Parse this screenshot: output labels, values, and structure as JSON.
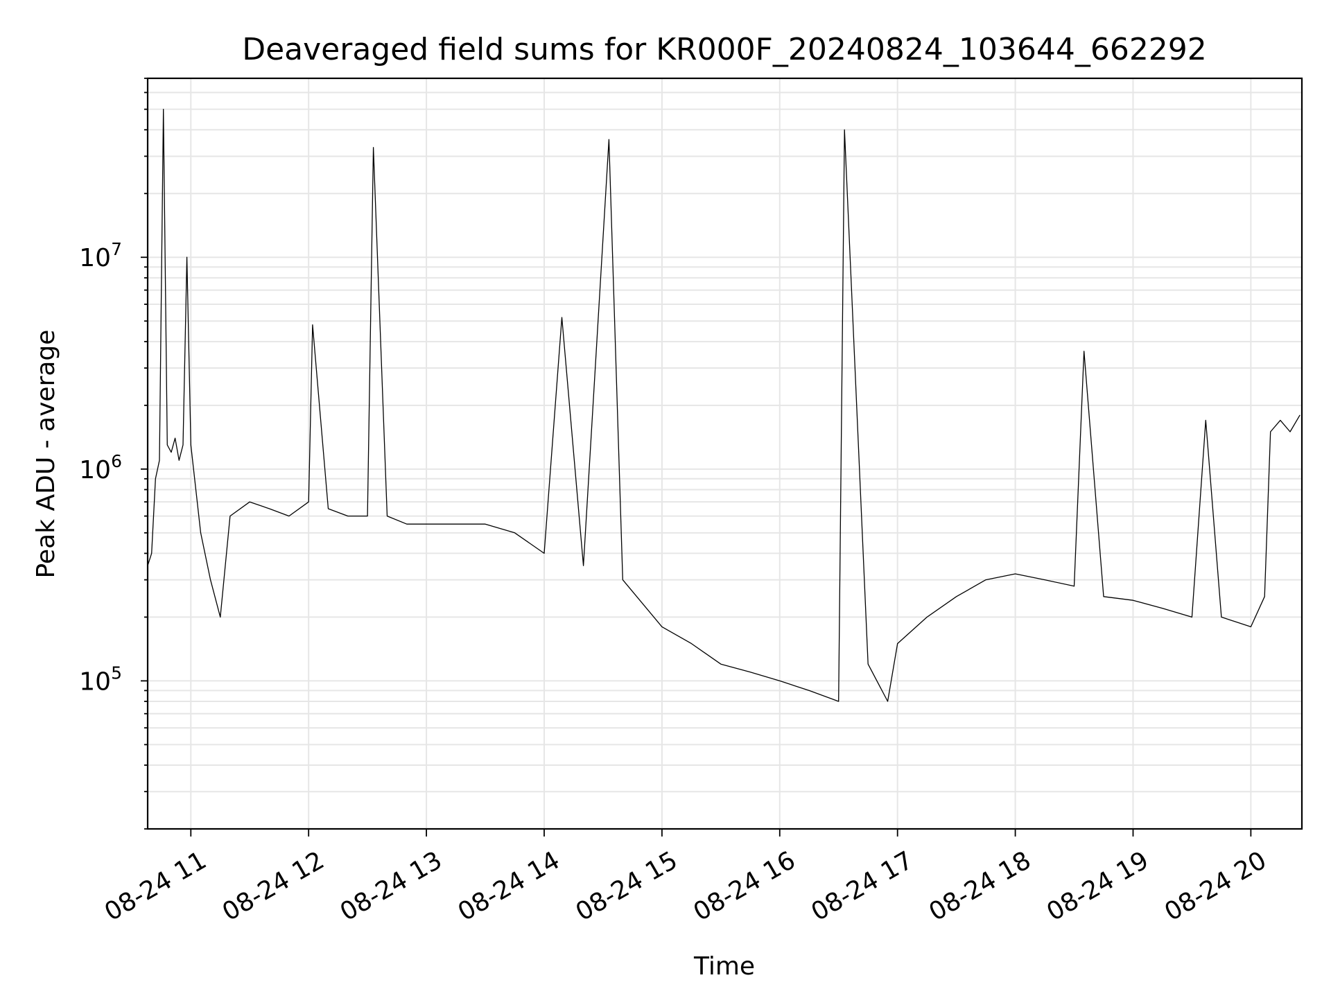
{
  "chart_data": {
    "type": "line",
    "title": "Deaveraged field sums for KR000F_20240824_103644_662292",
    "xlabel": "Time",
    "ylabel": "Peak ADU - average",
    "yscale": "log",
    "ylim": [
      20000,
      70000000
    ],
    "xlim": [
      "08-24 10:38",
      "08-24 20:26"
    ],
    "grid": true,
    "line_color": "#000000",
    "grid_color": "#e6e6e6",
    "x_ticks": [
      "08-24 11",
      "08-24 12",
      "08-24 13",
      "08-24 14",
      "08-24 15",
      "08-24 16",
      "08-24 17",
      "08-24 18",
      "08-24 19",
      "08-24 20"
    ],
    "y_ticks": [
      {
        "base": "10",
        "exp": "5",
        "value": 100000
      },
      {
        "base": "10",
        "exp": "6",
        "value": 1000000
      },
      {
        "base": "10",
        "exp": "7",
        "value": 10000000
      }
    ],
    "series": [
      {
        "x": [
          "08-24 10:38",
          "08-24 10:40",
          "08-24 10:42",
          "08-24 10:44",
          "08-24 10:46",
          "08-24 10:48",
          "08-24 10:50",
          "08-24 10:52",
          "08-24 10:54",
          "08-24 10:56",
          "08-24 10:58",
          "08-24 11:00",
          "08-24 11:05",
          "08-24 11:10",
          "08-24 11:15",
          "08-24 11:20",
          "08-24 11:30",
          "08-24 11:40",
          "08-24 11:50",
          "08-24 12:00",
          "08-24 12:02",
          "08-24 12:10",
          "08-24 12:20",
          "08-24 12:30",
          "08-24 12:33",
          "08-24 12:40",
          "08-24 12:50",
          "08-24 13:00",
          "08-24 13:15",
          "08-24 13:30",
          "08-24 13:45",
          "08-24 14:00",
          "08-24 14:09",
          "08-24 14:20",
          "08-24 14:33",
          "08-24 14:40",
          "08-24 15:00",
          "08-24 15:15",
          "08-24 15:30",
          "08-24 15:45",
          "08-24 16:00",
          "08-24 16:15",
          "08-24 16:30",
          "08-24 16:33",
          "08-24 16:45",
          "08-24 16:55",
          "08-24 17:00",
          "08-24 17:15",
          "08-24 17:30",
          "08-24 17:45",
          "08-24 18:00",
          "08-24 18:15",
          "08-24 18:30",
          "08-24 18:35",
          "08-24 18:45",
          "08-24 19:00",
          "08-24 19:15",
          "08-24 19:30",
          "08-24 19:37",
          "08-24 19:45",
          "08-24 20:00",
          "08-24 20:07",
          "08-24 20:10",
          "08-24 20:15",
          "08-24 20:20",
          "08-24 20:25"
        ],
        "values": [
          350000,
          400000,
          900000,
          1100000,
          50000000,
          1300000,
          1200000,
          1400000,
          1100000,
          1300000,
          10000000,
          1300000,
          500000,
          300000,
          200000,
          600000,
          700000,
          650000,
          600000,
          700000,
          4800000,
          650000,
          600000,
          600000,
          33000000,
          600000,
          550000,
          550000,
          550000,
          550000,
          500000,
          400000,
          5200000,
          350000,
          36000000,
          300000,
          180000,
          150000,
          120000,
          110000,
          100000,
          90000,
          80000,
          40000000,
          120000,
          80000,
          150000,
          200000,
          250000,
          300000,
          320000,
          300000,
          280000,
          3600000,
          250000,
          240000,
          220000,
          200000,
          1700000,
          200000,
          180000,
          250000,
          1500000,
          1700000,
          1500000,
          1800000
        ]
      }
    ]
  }
}
